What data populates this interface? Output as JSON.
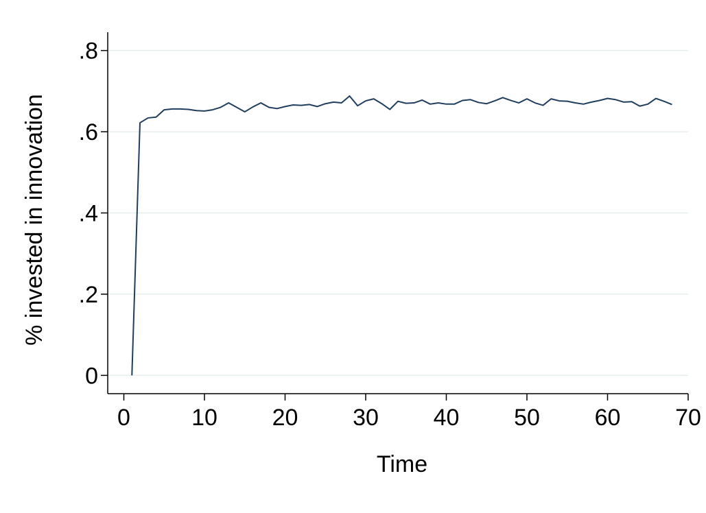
{
  "chart_data": {
    "type": "line",
    "xlabel": "Time",
    "ylabel": "% invested in innovation",
    "xlim": [
      -2,
      70
    ],
    "ylim": [
      -0.045,
      0.845
    ],
    "x_ticks": [
      0,
      10,
      20,
      30,
      40,
      50,
      60,
      70
    ],
    "x_tick_labels": [
      "0",
      "10",
      "20",
      "30",
      "40",
      "50",
      "60",
      "70"
    ],
    "y_ticks": [
      0,
      0.2,
      0.4,
      0.6,
      0.8
    ],
    "y_tick_labels": [
      "0",
      ".2",
      ".4",
      ".6",
      ".8"
    ],
    "grid": true,
    "colors": {
      "line": "#1f3d5c",
      "grid": "#e6eeee",
      "axis": "#000000"
    },
    "series": [
      {
        "x": [
          1,
          2,
          3,
          4,
          5,
          6,
          7,
          8,
          9,
          10,
          11,
          12,
          13,
          14,
          15,
          16,
          17,
          18,
          19,
          20,
          21,
          22,
          23,
          24,
          25,
          26,
          27,
          28,
          29,
          30,
          31,
          32,
          33,
          34,
          35,
          36,
          37,
          38,
          39,
          40,
          41,
          42,
          43,
          44,
          45,
          46,
          47,
          48,
          49,
          50,
          51,
          52,
          53,
          54,
          55,
          56,
          57,
          58,
          59,
          60,
          61,
          62,
          63,
          64,
          65,
          66,
          67,
          68
        ],
        "values": [
          0,
          0.622,
          0.634,
          0.636,
          0.654,
          0.656,
          0.656,
          0.655,
          0.652,
          0.651,
          0.654,
          0.66,
          0.671,
          0.66,
          0.649,
          0.661,
          0.671,
          0.66,
          0.657,
          0.662,
          0.666,
          0.665,
          0.667,
          0.662,
          0.669,
          0.673,
          0.671,
          0.688,
          0.664,
          0.676,
          0.681,
          0.669,
          0.655,
          0.675,
          0.67,
          0.671,
          0.678,
          0.668,
          0.671,
          0.668,
          0.668,
          0.677,
          0.679,
          0.672,
          0.669,
          0.676,
          0.684,
          0.677,
          0.671,
          0.681,
          0.671,
          0.665,
          0.681,
          0.676,
          0.675,
          0.671,
          0.668,
          0.673,
          0.677,
          0.682,
          0.679,
          0.673,
          0.674,
          0.663,
          0.668,
          0.682,
          0.675,
          0.667
        ]
      }
    ]
  }
}
